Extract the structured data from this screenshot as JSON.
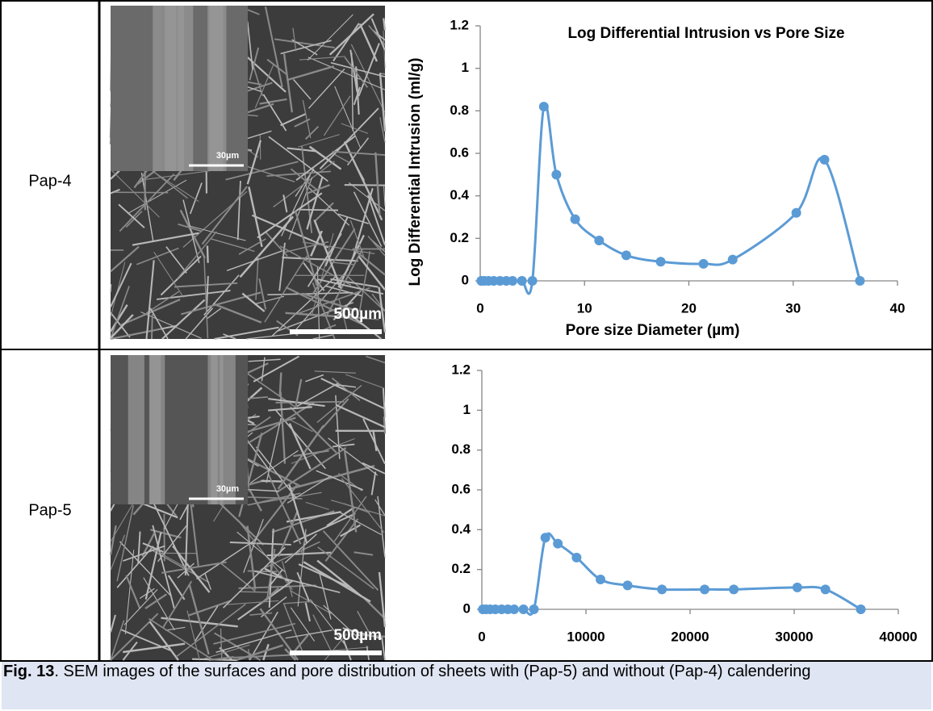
{
  "table": {
    "rows": [
      {
        "label": "Pap-4",
        "image": {
          "inset_scale": "30µm",
          "scale": "500µm"
        }
      },
      {
        "label": "Pap-5",
        "image": {
          "inset_scale": "30µm",
          "scale": "500µm"
        }
      }
    ]
  },
  "chart_data": [
    {
      "type": "line",
      "title": "Log Differential Intrusion vs Pore Size",
      "x_label": "Pore size Diameter (µm)",
      "y_label": "Log Differential Intrusion (ml/g)",
      "x": [
        0.1,
        0.4,
        0.8,
        1.3,
        1.9,
        2.5,
        3.1,
        4.0,
        5.0,
        6.1,
        7.3,
        9.1,
        11.4,
        14.0,
        17.3,
        21.4,
        24.2,
        30.3,
        33.0,
        36.4
      ],
      "series": [
        {
          "color": "#5b9bd5",
          "values": [
            0,
            0,
            0,
            0,
            0,
            0,
            0,
            0,
            0,
            0.82,
            0.5,
            0.29,
            0.19,
            0.12,
            0.09,
            0.08,
            0.1,
            0.32,
            0.57,
            0
          ]
        }
      ],
      "xlim": [
        0,
        40
      ],
      "xticks": [
        0,
        10,
        20,
        30,
        40
      ],
      "ylim": [
        0,
        1.2
      ],
      "yticks": [
        0,
        0.2,
        0.4,
        0.6,
        0.8,
        1,
        1.2
      ]
    },
    {
      "type": "line",
      "x": [
        100,
        400,
        800,
        1300,
        1900,
        2500,
        3100,
        4000,
        5000,
        6100,
        7300,
        9100,
        11400,
        14000,
        17300,
        21400,
        24200,
        30300,
        33000,
        36400
      ],
      "series": [
        {
          "color": "#5b9bd5",
          "values": [
            0,
            0,
            0,
            0,
            0,
            0,
            0,
            0,
            0,
            0.36,
            0.33,
            0.26,
            0.15,
            0.12,
            0.1,
            0.1,
            0.1,
            0.11,
            0.1,
            0
          ]
        }
      ],
      "xlim": [
        0,
        40000
      ],
      "xticks": [
        0,
        10000,
        20000,
        30000,
        40000
      ],
      "ylim": [
        0,
        1.2
      ],
      "yticks": [
        0,
        0.2,
        0.4,
        0.6,
        0.8,
        1,
        1.2
      ]
    }
  ],
  "caption": {
    "label": "Fig. 13",
    "text": ". SEM images of the surfaces and pore distribution of sheets with (Pap-5) and without (Pap-4) calendering"
  }
}
